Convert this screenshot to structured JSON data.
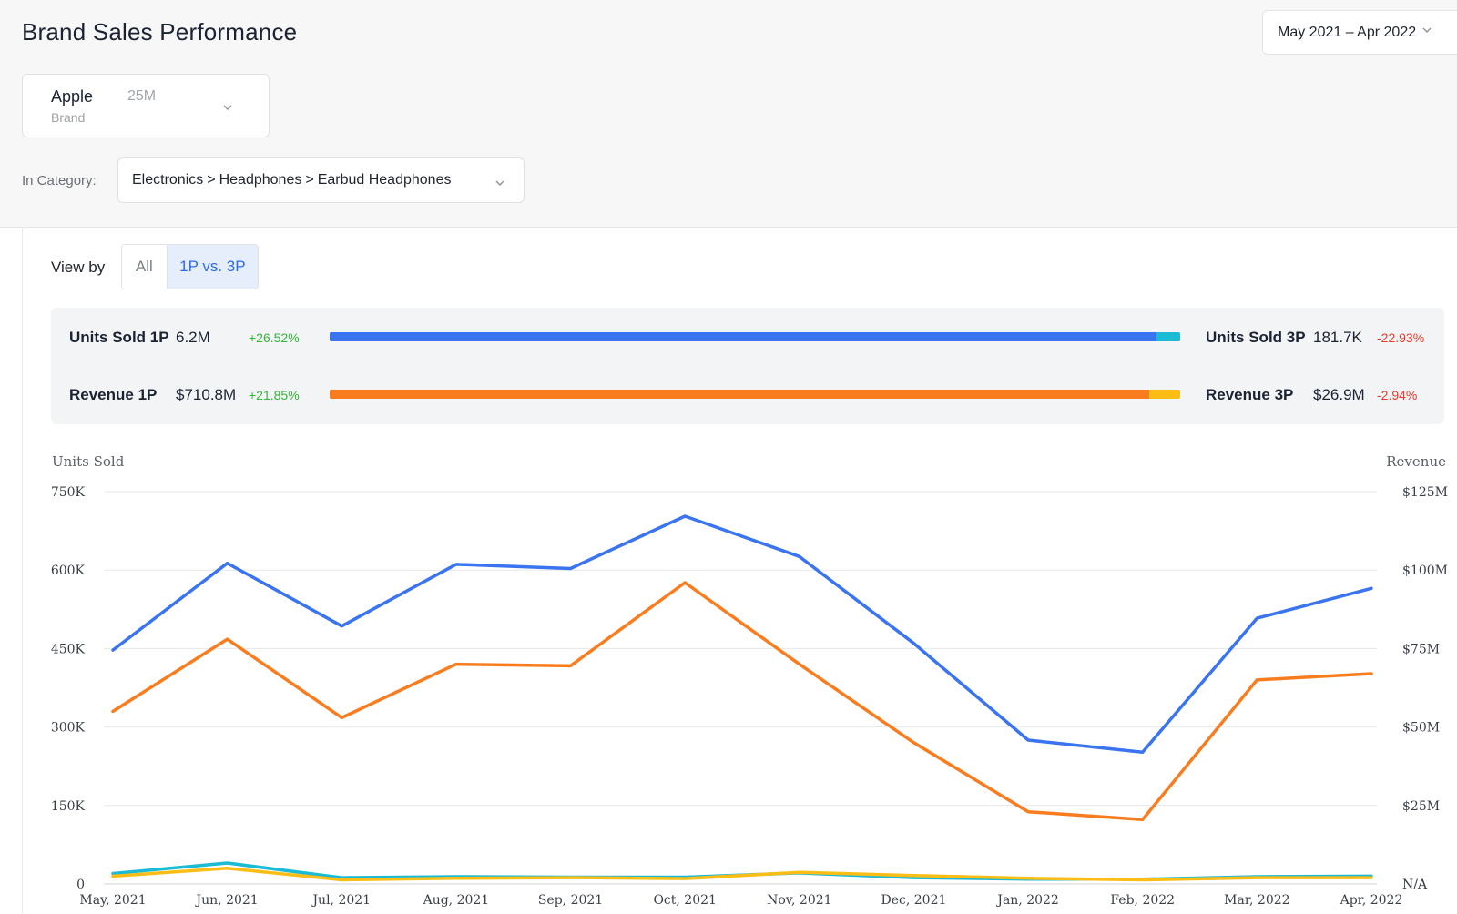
{
  "header": {
    "title": "Brand Sales Performance",
    "date_range": "May 2021 – Apr 2022"
  },
  "brand": {
    "name": "Apple",
    "count": "25M",
    "subtitle": "Brand"
  },
  "category": {
    "label": "In Category:",
    "path": [
      "Electronics",
      "Headphones",
      "Earbud Headphones"
    ],
    "separator": ">"
  },
  "view_by": {
    "label": "View by",
    "options": [
      "All",
      "1P vs. 3P"
    ],
    "selected": "1P vs. 3P"
  },
  "summary": {
    "units_1p": {
      "label": "Units Sold 1P",
      "value": "6.2M",
      "change": "+26.52%"
    },
    "units_3p": {
      "label": "Units Sold 3P",
      "value": "181.7K",
      "change": "-22.93%"
    },
    "revenue_1p": {
      "label": "Revenue 1P",
      "value": "$710.8M",
      "change": "+21.85%"
    },
    "revenue_3p": {
      "label": "Revenue 3P",
      "value": "$26.9M",
      "change": "-2.94%"
    },
    "units_1p_share": 0.972,
    "revenue_1p_share": 0.964
  },
  "colors": {
    "units_1p": "#3b74f0",
    "units_3p": "#1bbbd6",
    "revenue_1p": "#f97d1f",
    "revenue_3p": "#fbbd16",
    "positive": "#34b53a",
    "negative": "#ea3a2a"
  },
  "chart_data": {
    "type": "line",
    "left_axis_title": "Units Sold",
    "right_axis_title": "Revenue",
    "categories": [
      "May, 2021",
      "Jun, 2021",
      "Jul, 2021",
      "Aug, 2021",
      "Sep, 2021",
      "Oct, 2021",
      "Nov, 2021",
      "Dec, 2021",
      "Jan, 2022",
      "Feb, 2022",
      "Mar, 2022",
      "Apr, 2022"
    ],
    "left_ticks": [
      0,
      150000,
      300000,
      450000,
      600000,
      750000
    ],
    "left_tick_labels": [
      "0",
      "150K",
      "300K",
      "450K",
      "600K",
      "750K"
    ],
    "right_ticks": [
      0,
      25000000,
      50000000,
      75000000,
      100000000,
      125000000
    ],
    "right_tick_labels": [
      "N/A",
      "$25M",
      "$50M",
      "$75M",
      "$100M",
      "$125M"
    ],
    "ylim_left": [
      0,
      750000
    ],
    "ylim_right": [
      0,
      125000000
    ],
    "grid": true,
    "series": [
      {
        "key": "units_1p",
        "axis": "left",
        "values": [
          447000,
          613000,
          493000,
          611000,
          603000,
          703000,
          626000,
          460000,
          275000,
          252000,
          508000,
          565000
        ]
      },
      {
        "key": "revenue_1p",
        "axis": "right",
        "values": [
          55000000,
          78000000,
          53000000,
          70000000,
          69500000,
          96000000,
          70000000,
          45000000,
          23000000,
          20500000,
          65000000,
          67000000
        ]
      },
      {
        "key": "units_3p",
        "axis": "left",
        "values": [
          20000,
          40000,
          12000,
          14000,
          13000,
          13000,
          21000,
          12000,
          9000,
          9000,
          14000,
          15000
        ]
      },
      {
        "key": "revenue_3p",
        "axis": "right",
        "values": [
          2500000,
          5000000,
          1300000,
          1800000,
          2000000,
          1700000,
          3700000,
          2700000,
          1800000,
          1300000,
          2000000,
          2000000
        ]
      }
    ]
  }
}
